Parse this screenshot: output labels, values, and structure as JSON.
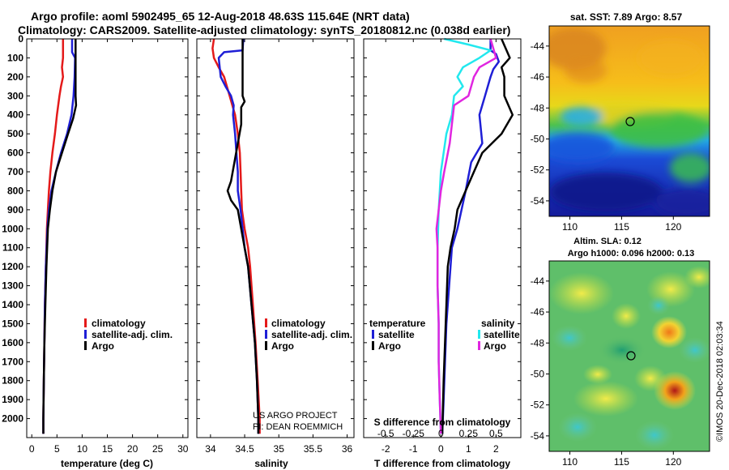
{
  "figure": {
    "title_line1": "Argo profile: aoml 5902495_65 12-Aug-2018 48.63S 115.64E (NRT data)",
    "title_line2": "Climatology: CARS2009. Satellite-adjusted climatology: synTS_20180812.nc (0.038d earlier)",
    "credit": "US ARGO PROJECT",
    "pi": "PI: DEAN ROEMMICH",
    "copyright": "©IMOS 20-Dec-2018 02:03:34"
  },
  "colors": {
    "climatology": "#e41a1a",
    "satellite": "#1f1fd6",
    "argo": "#000000",
    "salinity_satellite": "#22e8ee",
    "salinity_argo": "#e026e0"
  },
  "chart_data": [
    {
      "type": "line",
      "xlabel": "temperature (deg C)",
      "xlim": [
        -1,
        31
      ],
      "ylim": [
        2100,
        0
      ],
      "x_ticks": [
        "0",
        "5",
        "10",
        "15",
        "20",
        "25",
        "30"
      ],
      "y_ticks": [
        "0",
        "100",
        "200",
        "300",
        "400",
        "500",
        "600",
        "700",
        "800",
        "900",
        "1000",
        "1100",
        "1200",
        "1300",
        "1400",
        "1500",
        "1600",
        "1700",
        "1800",
        "1900",
        "2000"
      ],
      "legend": [
        "climatology",
        "satellite-adj. clim.",
        "Argo"
      ],
      "series": [
        {
          "name": "climatology",
          "color": "#e41a1a",
          "points": [
            [
              6.2,
              0
            ],
            [
              6.2,
              100
            ],
            [
              6.0,
              150
            ],
            [
              6.2,
              200
            ],
            [
              5.8,
              250
            ],
            [
              5.5,
              300
            ],
            [
              5.0,
              400
            ],
            [
              4.6,
              500
            ],
            [
              4.1,
              600
            ],
            [
              3.7,
              700
            ],
            [
              3.4,
              800
            ],
            [
              3.2,
              900
            ],
            [
              3.0,
              1000
            ],
            [
              2.8,
              1200
            ],
            [
              2.6,
              1400
            ],
            [
              2.5,
              1600
            ],
            [
              2.4,
              1800
            ],
            [
              2.3,
              2000
            ],
            [
              2.3,
              2080
            ]
          ]
        },
        {
          "name": "satellite-adj. clim.",
          "color": "#1f1fd6",
          "points": [
            [
              8.0,
              0
            ],
            [
              8.0,
              70
            ],
            [
              8.6,
              100
            ],
            [
              8.5,
              200
            ],
            [
              8.3,
              300
            ],
            [
              7.9,
              400
            ],
            [
              7.0,
              500
            ],
            [
              5.8,
              600
            ],
            [
              4.8,
              700
            ],
            [
              3.9,
              800
            ],
            [
              3.4,
              900
            ],
            [
              3.1,
              1000
            ],
            [
              2.8,
              1200
            ],
            [
              2.6,
              1400
            ],
            [
              2.5,
              1600
            ],
            [
              2.4,
              1800
            ],
            [
              2.3,
              2000
            ],
            [
              2.3,
              2080
            ]
          ]
        },
        {
          "name": "Argo",
          "color": "#000000",
          "points": [
            [
              8.7,
              0
            ],
            [
              8.7,
              100
            ],
            [
              8.7,
              300
            ],
            [
              8.8,
              350
            ],
            [
              8.2,
              420
            ],
            [
              7.2,
              500
            ],
            [
              6.0,
              600
            ],
            [
              4.8,
              700
            ],
            [
              4.1,
              800
            ],
            [
              3.6,
              900
            ],
            [
              3.2,
              1000
            ],
            [
              2.9,
              1200
            ],
            [
              2.7,
              1400
            ],
            [
              2.5,
              1600
            ],
            [
              2.4,
              1800
            ],
            [
              2.3,
              2000
            ],
            [
              2.3,
              2080
            ]
          ]
        }
      ]
    },
    {
      "type": "line",
      "xlabel": "salinity",
      "xlim": [
        33.8,
        36.1
      ],
      "ylim": [
        2100,
        0
      ],
      "x_ticks": [
        "34",
        "34.5",
        "35",
        "35.5",
        "36"
      ],
      "legend": [
        "climatology",
        "satellite-adj. clim.",
        "Argo"
      ],
      "series": [
        {
          "name": "climatology",
          "color": "#e41a1a",
          "points": [
            [
              34.05,
              0
            ],
            [
              34.03,
              50
            ],
            [
              34.05,
              100
            ],
            [
              34.12,
              150
            ],
            [
              34.2,
              200
            ],
            [
              34.28,
              300
            ],
            [
              34.36,
              400
            ],
            [
              34.4,
              500
            ],
            [
              34.43,
              600
            ],
            [
              34.44,
              700
            ],
            [
              34.45,
              800
            ],
            [
              34.46,
              900
            ],
            [
              34.5,
              1000
            ],
            [
              34.55,
              1100
            ],
            [
              34.58,
              1200
            ],
            [
              34.62,
              1400
            ],
            [
              34.66,
              1600
            ],
            [
              34.69,
              1800
            ],
            [
              34.72,
              2000
            ],
            [
              34.72,
              2080
            ]
          ]
        },
        {
          "name": "satellite-adj. clim.",
          "color": "#1f1fd6",
          "points": [
            [
              34.48,
              0
            ],
            [
              34.47,
              60
            ],
            [
              34.2,
              70
            ],
            [
              34.12,
              100
            ],
            [
              34.15,
              200
            ],
            [
              34.22,
              250
            ],
            [
              34.3,
              300
            ],
            [
              34.34,
              350
            ],
            [
              34.33,
              400
            ],
            [
              34.36,
              500
            ],
            [
              34.38,
              600
            ],
            [
              34.4,
              700
            ],
            [
              34.4,
              800
            ],
            [
              34.44,
              900
            ],
            [
              34.47,
              1000
            ],
            [
              34.5,
              1100
            ],
            [
              34.55,
              1200
            ],
            [
              34.6,
              1400
            ],
            [
              34.65,
              1600
            ],
            [
              34.68,
              1800
            ],
            [
              34.7,
              2000
            ],
            [
              34.7,
              2080
            ]
          ]
        },
        {
          "name": "Argo",
          "color": "#000000",
          "points": [
            [
              34.47,
              0
            ],
            [
              34.47,
              100
            ],
            [
              34.47,
              300
            ],
            [
              34.5,
              330
            ],
            [
              34.45,
              360
            ],
            [
              34.45,
              450
            ],
            [
              34.4,
              550
            ],
            [
              34.35,
              650
            ],
            [
              34.3,
              750
            ],
            [
              34.25,
              800
            ],
            [
              34.3,
              850
            ],
            [
              34.4,
              900
            ],
            [
              34.45,
              1000
            ],
            [
              34.5,
              1100
            ],
            [
              34.55,
              1200
            ],
            [
              34.6,
              1400
            ],
            [
              34.65,
              1600
            ],
            [
              34.68,
              1800
            ],
            [
              34.7,
              2000
            ],
            [
              34.7,
              2080
            ]
          ]
        }
      ]
    },
    {
      "type": "line",
      "xlabel": "T difference from climatology",
      "xlabel2": "S difference from climatology",
      "xlim": [
        -2.8,
        2.9
      ],
      "ylim": [
        2100,
        0
      ],
      "x_ticks": [
        "-2",
        "-1",
        "0",
        "1",
        "2"
      ],
      "x2_ticks": [
        "-0.5",
        "-0.25",
        "0",
        "0.25",
        "0.5"
      ],
      "legend_temperature_title": "temperature",
      "legend_salinity_title": "salinity",
      "legend_temperature": [
        "satellite",
        "Argo"
      ],
      "legend_salinity": [
        "satellite",
        "Argo"
      ],
      "series": [
        {
          "name": "satellite",
          "group": "temperature",
          "color": "#1f1fd6",
          "points": [
            [
              1.8,
              0
            ],
            [
              1.8,
              60
            ],
            [
              2.0,
              80
            ],
            [
              2.1,
              120
            ],
            [
              1.9,
              160
            ],
            [
              1.8,
              200
            ],
            [
              1.6,
              300
            ],
            [
              1.4,
              400
            ],
            [
              1.5,
              550
            ],
            [
              1.1,
              650
            ],
            [
              0.9,
              800
            ],
            [
              0.6,
              1000
            ],
            [
              0.4,
              1100
            ],
            [
              0.3,
              1300
            ],
            [
              0.2,
              1500
            ],
            [
              0.15,
              1700
            ],
            [
              0.1,
              1900
            ],
            [
              0.05,
              2080
            ]
          ]
        },
        {
          "name": "Argo",
          "group": "temperature",
          "color": "#000000",
          "points": [
            [
              2.2,
              0
            ],
            [
              2.5,
              100
            ],
            [
              2.2,
              150
            ],
            [
              2.3,
              200
            ],
            [
              2.3,
              300
            ],
            [
              2.6,
              400
            ],
            [
              2.2,
              500
            ],
            [
              1.5,
              600
            ],
            [
              1.2,
              700
            ],
            [
              0.9,
              800
            ],
            [
              0.6,
              900
            ],
            [
              0.5,
              1000
            ],
            [
              0.35,
              1100
            ],
            [
              0.25,
              1200
            ],
            [
              0.2,
              1400
            ],
            [
              0.15,
              1600
            ],
            [
              0.1,
              1800
            ],
            [
              0.05,
              2080
            ]
          ]
        },
        {
          "name": "satellite",
          "group": "salinity",
          "color": "#22e8ee",
          "points": [
            [
              0.03,
              0
            ],
            [
              0.25,
              30
            ],
            [
              0.45,
              60
            ],
            [
              0.35,
              100
            ],
            [
              0.2,
              150
            ],
            [
              0.15,
              200
            ],
            [
              0.2,
              250
            ],
            [
              0.12,
              300
            ],
            [
              0.1,
              400
            ],
            [
              0.05,
              500
            ],
            [
              0.0,
              700
            ],
            [
              -0.02,
              900
            ],
            [
              -0.03,
              1100
            ],
            [
              -0.03,
              1300
            ],
            [
              -0.02,
              1500
            ],
            [
              -0.02,
              1700
            ],
            [
              -0.01,
              1900
            ],
            [
              0.0,
              2080
            ]
          ]
        },
        {
          "name": "Argo",
          "group": "salinity",
          "color": "#e026e0",
          "points": [
            [
              0.45,
              0
            ],
            [
              0.5,
              100
            ],
            [
              0.35,
              150
            ],
            [
              0.3,
              200
            ],
            [
              0.25,
              300
            ],
            [
              0.12,
              350
            ],
            [
              0.1,
              450
            ],
            [
              0.08,
              550
            ],
            [
              0.03,
              700
            ],
            [
              0.0,
              800
            ],
            [
              -0.02,
              900
            ],
            [
              -0.04,
              1000
            ],
            [
              -0.03,
              1100
            ],
            [
              -0.03,
              1300
            ],
            [
              -0.02,
              1500
            ],
            [
              -0.02,
              1700
            ],
            [
              -0.01,
              1900
            ],
            [
              0.0,
              2080
            ]
          ]
        }
      ]
    },
    {
      "type": "heatmap",
      "title": "sat. SST: 7.89 Argo: 8.57",
      "x_ticks": [
        "110",
        "115",
        "120"
      ],
      "y_ticks": [
        "-44",
        "-46",
        "-48",
        "-50",
        "-52",
        "-54"
      ],
      "xlim": [
        108,
        123.5
      ],
      "ylim": [
        -55,
        -42.7
      ],
      "marker": {
        "lon": 115.64,
        "lat": -48.63
      }
    },
    {
      "type": "heatmap",
      "title": "Altim. SLA: 0.12",
      "subtitle": "Argo h1000: 0.096 h2000: 0.13",
      "x_ticks": [
        "110",
        "115",
        "120"
      ],
      "y_ticks": [
        "-44",
        "-46",
        "-48",
        "-50",
        "-52",
        "-54"
      ],
      "xlim": [
        108,
        123.5
      ],
      "ylim": [
        -55,
        -42.7
      ],
      "marker": {
        "lon": 115.64,
        "lat": -48.63
      }
    }
  ]
}
